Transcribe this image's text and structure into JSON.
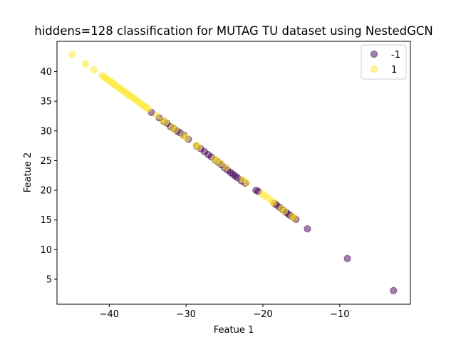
{
  "chart_data": {
    "type": "scatter",
    "title": "hiddens=128 classification for MUTAG TU dataset using NestedGCN",
    "xlabel": "Featue 1",
    "ylabel": "Featue 2",
    "xlim": [
      -46.8,
      -0.8
    ],
    "ylim": [
      0.8,
      45.1
    ],
    "xticks": [
      -40,
      -30,
      -20,
      -10
    ],
    "yticks": [
      5,
      10,
      15,
      20,
      25,
      30,
      35,
      40
    ],
    "grid": false,
    "legend_position": "top-right",
    "marker_alpha": 0.5,
    "series": [
      {
        "name": "-1",
        "color": "#440154",
        "points": [
          [
            -34.5,
            33.1
          ],
          [
            -33.5,
            32.2
          ],
          [
            -32.9,
            31.6
          ],
          [
            -32.5,
            31.3
          ],
          [
            -32.0,
            30.7
          ],
          [
            -31.6,
            30.4
          ],
          [
            -31.2,
            30.0
          ],
          [
            -30.8,
            29.7
          ],
          [
            -30.3,
            29.3
          ],
          [
            -29.7,
            28.6
          ],
          [
            -28.6,
            27.4
          ],
          [
            -28.1,
            27.0
          ],
          [
            -27.6,
            26.5
          ],
          [
            -27.1,
            26.0
          ],
          [
            -26.7,
            25.6
          ],
          [
            -26.2,
            25.1
          ],
          [
            -25.8,
            24.7
          ],
          [
            -25.4,
            24.3
          ],
          [
            -25.0,
            23.8
          ],
          [
            -24.6,
            23.4
          ],
          [
            -24.2,
            23.0
          ],
          [
            -23.9,
            22.7
          ],
          [
            -23.6,
            22.4
          ],
          [
            -23.3,
            22.1
          ],
          [
            -22.8,
            21.6
          ],
          [
            -22.3,
            21.2
          ],
          [
            -20.9,
            20.0
          ],
          [
            -20.6,
            19.8
          ],
          [
            -18.5,
            17.8
          ],
          [
            -18.2,
            17.5
          ],
          [
            -17.8,
            17.1
          ],
          [
            -17.4,
            16.7
          ],
          [
            -17.0,
            16.3
          ],
          [
            -16.7,
            16.0
          ],
          [
            -16.4,
            15.7
          ],
          [
            -16.0,
            15.4
          ],
          [
            -15.7,
            15.1
          ],
          [
            -14.2,
            13.5
          ],
          [
            -9.0,
            8.5
          ],
          [
            -3.0,
            3.1
          ]
        ]
      },
      {
        "name": "1",
        "color": "#fde725",
        "points": [
          [
            -44.8,
            42.9
          ],
          [
            -43.1,
            41.3
          ],
          [
            -42.0,
            40.3
          ],
          [
            -40.9,
            39.3
          ],
          [
            -40.6,
            39.0
          ],
          [
            -40.3,
            38.8
          ],
          [
            -40.0,
            38.5
          ],
          [
            -39.7,
            38.2
          ],
          [
            -39.4,
            37.9
          ],
          [
            -39.1,
            37.6
          ],
          [
            -38.8,
            37.3
          ],
          [
            -38.5,
            37.1
          ],
          [
            -38.2,
            36.8
          ],
          [
            -37.9,
            36.5
          ],
          [
            -37.6,
            36.2
          ],
          [
            -37.3,
            35.9
          ],
          [
            -37.0,
            35.7
          ],
          [
            -36.7,
            35.4
          ],
          [
            -36.4,
            35.1
          ],
          [
            -36.1,
            34.8
          ],
          [
            -35.8,
            34.5
          ],
          [
            -35.5,
            34.2
          ],
          [
            -35.2,
            34.0
          ],
          [
            -34.9,
            33.7
          ],
          [
            -33.8,
            32.6
          ],
          [
            -33.0,
            31.8
          ],
          [
            -32.7,
            31.5
          ],
          [
            -31.8,
            30.6
          ],
          [
            -31.4,
            30.2
          ],
          [
            -30.4,
            29.2
          ],
          [
            -29.9,
            28.8
          ],
          [
            -28.7,
            27.6
          ],
          [
            -28.4,
            27.3
          ],
          [
            -26.3,
            25.3
          ],
          [
            -26.0,
            25.0
          ],
          [
            -25.5,
            24.6
          ],
          [
            -24.8,
            23.9
          ],
          [
            -22.6,
            21.8
          ],
          [
            -22.1,
            21.3
          ],
          [
            -20.1,
            19.4
          ],
          [
            -19.7,
            19.0
          ],
          [
            -19.3,
            18.7
          ],
          [
            -18.8,
            18.2
          ],
          [
            -18.6,
            17.9
          ],
          [
            -17.6,
            16.9
          ],
          [
            -17.2,
            16.5
          ],
          [
            -16.2,
            15.6
          ],
          [
            -15.9,
            15.3
          ]
        ]
      }
    ]
  }
}
